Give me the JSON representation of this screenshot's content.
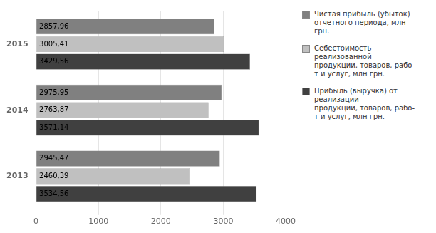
{
  "chart_data": {
    "type": "bar",
    "orientation": "horizontal",
    "categories": [
      "2015",
      "2014",
      "2013"
    ],
    "series": [
      {
        "name": "Чистая прибыль (убыток)\nотчетного периода, млн\nгрн.",
        "color": "#808080",
        "values": [
          2857.96,
          2975.95,
          2945.47
        ],
        "value_labels": [
          "2857,96",
          "2975,95",
          "2945,47"
        ]
      },
      {
        "name": "Себестоимость\nреализованной\nпродукции, товаров, рабо-\nт и услуг, млн грн.",
        "color": "#c0c0c0",
        "values": [
          3005.41,
          2763.87,
          2460.39
        ],
        "value_labels": [
          "3005,41",
          "2763,87",
          "2460,39"
        ]
      },
      {
        "name": "Прибыль (выручка) от\nреализации\nпродукции, товаров, рабо-\nт и услуг, млн грн.",
        "color": "#404040",
        "values": [
          3429.56,
          3571.14,
          3534.56
        ],
        "value_labels": [
          "3429,56",
          "3571,14",
          "3534,56"
        ]
      }
    ],
    "xlim": [
      0,
      4000
    ],
    "xticks": [
      0,
      1000,
      2000,
      3000,
      4000
    ],
    "grid": true,
    "legend": "right",
    "data_labels": true
  }
}
